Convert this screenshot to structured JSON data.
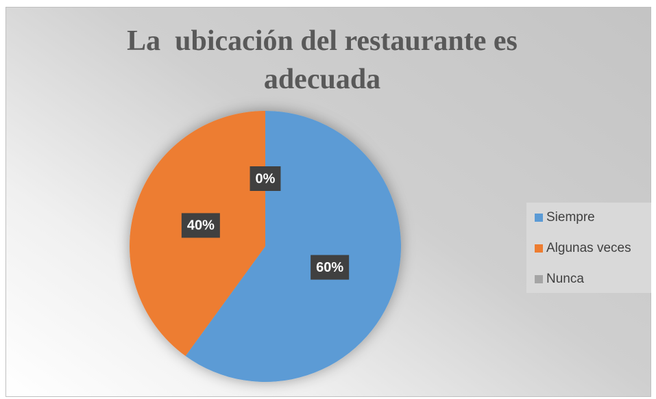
{
  "chart_data": {
    "type": "pie",
    "title": "La  ubicación del restaurante es adecuada",
    "categories": [
      "Siempre",
      "Algunas veces",
      "Nunca"
    ],
    "values": [
      60,
      40,
      0
    ],
    "value_labels": [
      "60%",
      "40%",
      "0%"
    ],
    "colors": [
      "#5b9bd5",
      "#ed7d31",
      "#a5a5a5"
    ],
    "legend": "right"
  }
}
